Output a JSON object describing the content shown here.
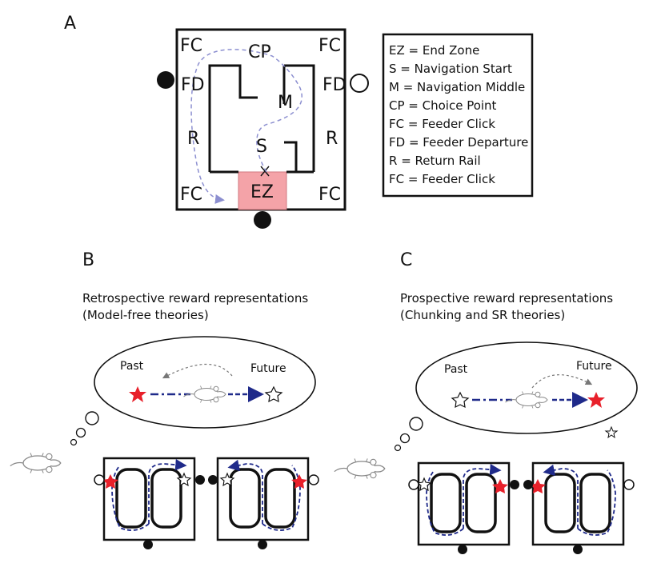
{
  "panels": {
    "a": "A",
    "b": "B",
    "c": "C"
  },
  "maze": {
    "fc_top_left": "FC",
    "cp": "CP",
    "fc_top_right": "FC",
    "fd_left": "FD",
    "fd_right": "FD",
    "m": "M",
    "r_left": "R",
    "r_right": "R",
    "s": "S",
    "fc_bottom_left": "FC",
    "ez": "EZ",
    "fc_bottom_right": "FC",
    "ez_color": "#f4a3a8"
  },
  "legend": [
    "EZ = End Zone",
    "S = Navigation Start",
    "M = Navigation Middle",
    "CP = Choice Point",
    "FC = Feeder Click",
    "FD = Feeder Departure",
    "R = Return Rail",
    "FC = Feeder Click"
  ],
  "panel_b": {
    "title_line1": "Retrospective reward representations",
    "title_line2": "(Model-free theories)",
    "past": "Past",
    "future": "Future"
  },
  "panel_c": {
    "title_line1": "Prospective reward representations",
    "title_line2": "(Chunking and SR theories)",
    "past": "Past",
    "future": "Future"
  },
  "colors": {
    "path_blue": "#1f2a8a",
    "trail_lavender": "#8c8fd0",
    "reward_red": "#e8202a"
  }
}
